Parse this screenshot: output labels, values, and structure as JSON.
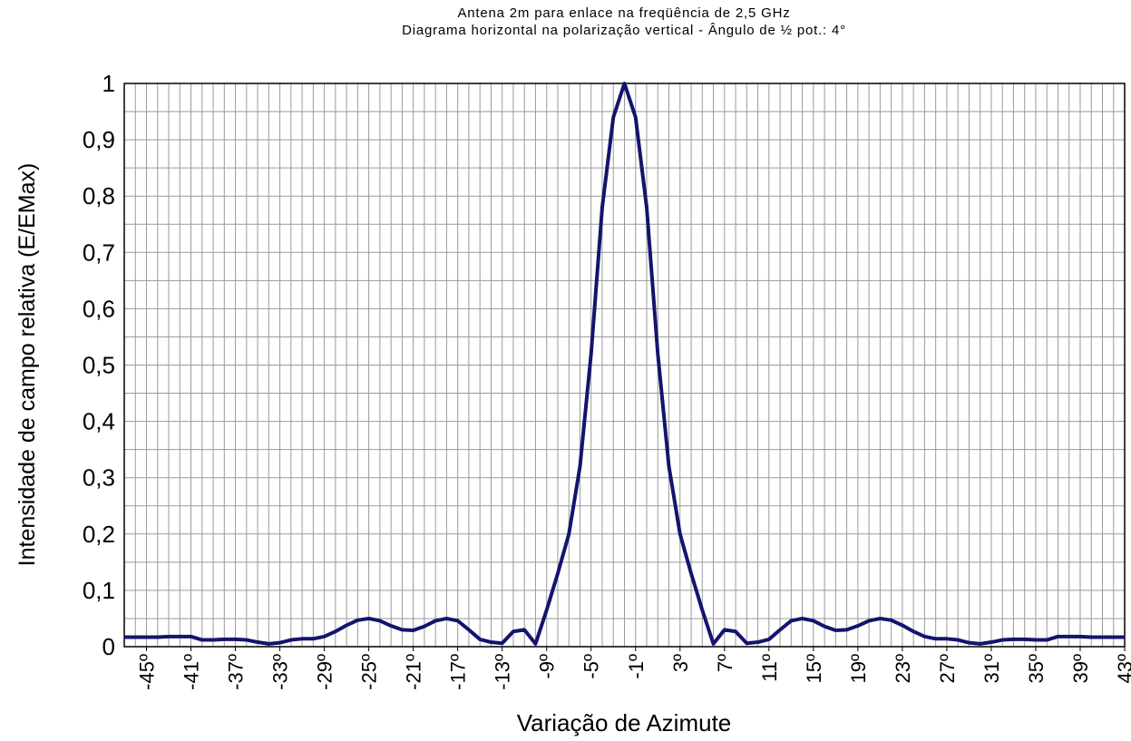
{
  "chart_data": {
    "type": "line",
    "title": "Antena 2m para enlace na freqüência de 2,5 GHz",
    "subtitle": "Diagrama horizontal na polarização vertical - Ângulo de ½ pot.: 4°",
    "x_label": "Variação de Azimute",
    "y_label": "Intensidade de campo relativa (E/EMax)",
    "x": [
      -47,
      -46,
      -45,
      -44,
      -43,
      -42,
      -41,
      -40,
      -39,
      -38,
      -37,
      -36,
      -35,
      -34,
      -33,
      -32,
      -31,
      -30,
      -29,
      -28,
      -27,
      -26,
      -25,
      -24,
      -23,
      -22,
      -21,
      -20,
      -19,
      -18,
      -17,
      -16,
      -15,
      -14,
      -13,
      -12,
      -11,
      -10,
      -9,
      -8,
      -7,
      -6,
      -5,
      -4,
      -3,
      -2,
      -1,
      0,
      1,
      2,
      3,
      4,
      5,
      6,
      7,
      8,
      9,
      10,
      11,
      12,
      13,
      14,
      15,
      16,
      17,
      18,
      19,
      20,
      21,
      22,
      23,
      24,
      25,
      26,
      27,
      28,
      29,
      30,
      31,
      32,
      33,
      34,
      35,
      36,
      37,
      38,
      39,
      40,
      41,
      42,
      43
    ],
    "series": [
      {
        "name": "E/EMax",
        "color": "#14146e",
        "values": [
          0.017,
          0.017,
          0.017,
          0.017,
          0.018,
          0.018,
          0.018,
          0.012,
          0.012,
          0.013,
          0.013,
          0.012,
          0.008,
          0.005,
          0.007,
          0.012,
          0.014,
          0.014,
          0.018,
          0.027,
          0.038,
          0.047,
          0.05,
          0.046,
          0.037,
          0.03,
          0.029,
          0.036,
          0.046,
          0.05,
          0.046,
          0.03,
          0.013,
          0.008,
          0.006,
          0.027,
          0.03,
          0.005,
          0.065,
          0.13,
          0.2,
          0.32,
          0.52,
          0.78,
          0.94,
          1,
          0.94,
          0.78,
          0.52,
          0.32,
          0.2,
          0.13,
          0.065,
          0.005,
          0.03,
          0.027,
          0.006,
          0.008,
          0.013,
          0.03,
          0.046,
          0.05,
          0.046,
          0.036,
          0.029,
          0.03,
          0.037,
          0.046,
          0.05,
          0.047,
          0.038,
          0.027,
          0.018,
          0.014,
          0.014,
          0.012,
          0.007,
          0.005,
          0.008,
          0.012,
          0.013,
          0.013,
          0.012,
          0.012,
          0.018,
          0.018,
          0.018,
          0.017,
          0.017,
          0.017,
          0.017
        ]
      }
    ],
    "xlim": [
      -47,
      43
    ],
    "xticks": [
      {
        "value": -45,
        "label": "-45º"
      },
      {
        "value": -41,
        "label": "-41º"
      },
      {
        "value": -37,
        "label": "-37º"
      },
      {
        "value": -33,
        "label": "-33º"
      },
      {
        "value": -29,
        "label": "-29º"
      },
      {
        "value": -25,
        "label": "-25º"
      },
      {
        "value": -21,
        "label": "-21º"
      },
      {
        "value": -17,
        "label": "-17º"
      },
      {
        "value": -13,
        "label": "-13º"
      },
      {
        "value": -9,
        "label": "-9º"
      },
      {
        "value": -5,
        "label": "-5º"
      },
      {
        "value": -1,
        "label": "-1º"
      },
      {
        "value": 3,
        "label": "3º"
      },
      {
        "value": 7,
        "label": "7º"
      },
      {
        "value": 11,
        "label": "11º"
      },
      {
        "value": 15,
        "label": "15º"
      },
      {
        "value": 19,
        "label": "19º"
      },
      {
        "value": 23,
        "label": "23º"
      },
      {
        "value": 27,
        "label": "27º"
      },
      {
        "value": 31,
        "label": "31º"
      },
      {
        "value": 35,
        "label": "35º"
      },
      {
        "value": 39,
        "label": "39º"
      },
      {
        "value": 43,
        "label": "43º"
      }
    ],
    "ylim": [
      0,
      1
    ],
    "yticks": [
      0,
      {
        "value": 0.1,
        "label": "0,1"
      },
      {
        "value": 0.2,
        "label": "0,2"
      },
      {
        "value": 0.3,
        "label": "0,3"
      },
      {
        "value": 0.4,
        "label": "0,4"
      },
      {
        "value": 0.5,
        "label": "0,5"
      },
      {
        "value": 0.6,
        "label": "0,6"
      },
      {
        "value": 0.7,
        "label": "0,7"
      },
      {
        "value": 0.8,
        "label": "0,8"
      },
      {
        "value": 0.9,
        "label": "0,9"
      },
      1
    ],
    "grid": true
  }
}
